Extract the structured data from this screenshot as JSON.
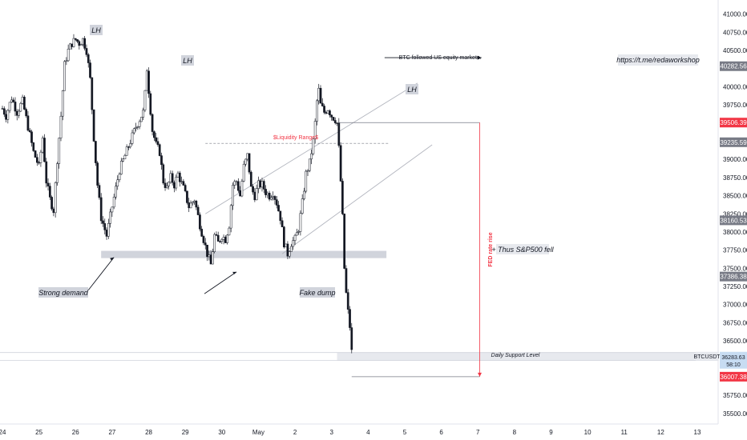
{
  "chart_data": {
    "type": "candlestick",
    "symbol": "BTCUSDT",
    "ylim": [
      35400,
      41150
    ],
    "y_ticks": [
      41000,
      40750,
      40500,
      40250,
      40000,
      39750,
      39500,
      39250,
      39000,
      38750,
      38500,
      38250,
      38000,
      37750,
      37500,
      37250,
      37000,
      36750,
      36500,
      36250,
      36000,
      35750,
      35500
    ],
    "x_labels": [
      "24",
      "25",
      "26",
      "27",
      "28",
      "29",
      "30",
      "May",
      "2",
      "3",
      "4",
      "5",
      "6",
      "7",
      "8",
      "9",
      "10",
      "11",
      "12",
      "13"
    ],
    "x_range": [
      0,
      19
    ],
    "price_badges": [
      {
        "value": "40282.56",
        "price": 40282.56,
        "color": "#787b86"
      },
      {
        "value": "39506.39",
        "price": 39506.39,
        "color": "#f23645"
      },
      {
        "value": "39235.59",
        "price": 39235.59,
        "color": "#787b86"
      },
      {
        "value": "38160.53",
        "price": 38160.53,
        "color": "#787b86"
      },
      {
        "value": "37386.38",
        "price": 37386.38,
        "color": "#787b86"
      },
      {
        "value": "36007.38",
        "price": 36007.38,
        "color": "#f23645"
      }
    ],
    "current_price": {
      "label": "BTCUSDT",
      "value": "36283.63",
      "countdown": "58:10",
      "price": 36283.63,
      "color": "#c7dcf2"
    },
    "path_points": [
      [
        0.0,
        39700
      ],
      [
        0.1,
        39600
      ],
      [
        0.25,
        39850
      ],
      [
        0.4,
        39650
      ],
      [
        0.55,
        39800
      ],
      [
        0.7,
        39450
      ],
      [
        0.85,
        39100
      ],
      [
        1.0,
        38900
      ],
      [
        1.1,
        39300
      ],
      [
        1.2,
        38700
      ],
      [
        1.3,
        38450
      ],
      [
        1.4,
        38300
      ],
      [
        1.5,
        39000
      ],
      [
        1.6,
        39600
      ],
      [
        1.7,
        40300
      ],
      [
        1.8,
        40500
      ],
      [
        1.9,
        40600
      ],
      [
        2.0,
        40650
      ],
      [
        2.1,
        40600
      ],
      [
        2.2,
        40650
      ],
      [
        2.3,
        40500
      ],
      [
        2.4,
        40100
      ],
      [
        2.5,
        39300
      ],
      [
        2.6,
        38650
      ],
      [
        2.7,
        38200
      ],
      [
        2.85,
        37950
      ],
      [
        3.0,
        38350
      ],
      [
        3.1,
        38600
      ],
      [
        3.2,
        38850
      ],
      [
        3.35,
        39050
      ],
      [
        3.5,
        39250
      ],
      [
        3.65,
        39450
      ],
      [
        3.75,
        39550
      ],
      [
        3.85,
        39650
      ],
      [
        3.9,
        39900
      ],
      [
        3.95,
        40250
      ],
      [
        4.0,
        39950
      ],
      [
        4.1,
        39400
      ],
      [
        4.2,
        39200
      ],
      [
        4.3,
        39100
      ],
      [
        4.4,
        38700
      ],
      [
        4.5,
        38600
      ],
      [
        4.6,
        38750
      ],
      [
        4.7,
        38650
      ],
      [
        4.8,
        38800
      ],
      [
        4.95,
        38600
      ],
      [
        5.1,
        38350
      ],
      [
        5.25,
        38450
      ],
      [
        5.4,
        38100
      ],
      [
        5.5,
        37900
      ],
      [
        5.6,
        37700
      ],
      [
        5.7,
        37550
      ],
      [
        5.8,
        37950
      ],
      [
        5.9,
        37850
      ],
      [
        6.0,
        37950
      ],
      [
        6.1,
        37900
      ],
      [
        6.2,
        38100
      ],
      [
        6.3,
        38650
      ],
      [
        6.4,
        38700
      ],
      [
        6.5,
        38500
      ],
      [
        6.6,
        38900
      ],
      [
        6.7,
        39050
      ],
      [
        6.75,
        38850
      ],
      [
        6.8,
        38600
      ],
      [
        6.9,
        38500
      ],
      [
        7.0,
        38650
      ],
      [
        7.1,
        38650
      ],
      [
        7.2,
        38550
      ],
      [
        7.3,
        38500
      ],
      [
        7.4,
        38550
      ],
      [
        7.5,
        38400
      ],
      [
        7.6,
        38200
      ],
      [
        7.7,
        37850
      ],
      [
        7.8,
        37700
      ],
      [
        7.9,
        37850
      ],
      [
        8.0,
        37900
      ],
      [
        8.1,
        38050
      ],
      [
        8.2,
        38400
      ],
      [
        8.3,
        38800
      ],
      [
        8.4,
        38950
      ],
      [
        8.5,
        39250
      ],
      [
        8.55,
        39500
      ],
      [
        8.6,
        39800
      ],
      [
        8.65,
        39950
      ],
      [
        8.7,
        39750
      ],
      [
        8.8,
        39650
      ],
      [
        8.9,
        39700
      ],
      [
        9.0,
        39600
      ],
      [
        9.1,
        39550
      ],
      [
        9.15,
        39500
      ],
      [
        9.2,
        39150
      ],
      [
        9.25,
        38700
      ],
      [
        9.3,
        38200
      ],
      [
        9.35,
        37500
      ],
      [
        9.4,
        37150
      ],
      [
        9.45,
        36900
      ],
      [
        9.5,
        36700
      ],
      [
        9.55,
        36350
      ],
      [
        9.6,
        36280
      ]
    ],
    "annotations": {
      "lh": [
        "LH",
        "LH",
        "LH"
      ],
      "liquidity_range": "$Liquidity Range$",
      "strong_demand": "Strong demand",
      "fake_dump": "Fake dump",
      "btc_followed": "BTC followed US equity markets.",
      "url": "https://t.me/redaworkshop",
      "fed_rate_rise": "FED rate rise",
      "thus_sp500": "+ Thus S&P500 fell",
      "daily_support": "Daily Support Level"
    },
    "colors": {
      "up": "#131722",
      "down": "#131722",
      "accent_red": "#f23645",
      "channel": "#b2b5be",
      "zone": "#d1d4dc",
      "support": "#e7e9ee"
    }
  }
}
